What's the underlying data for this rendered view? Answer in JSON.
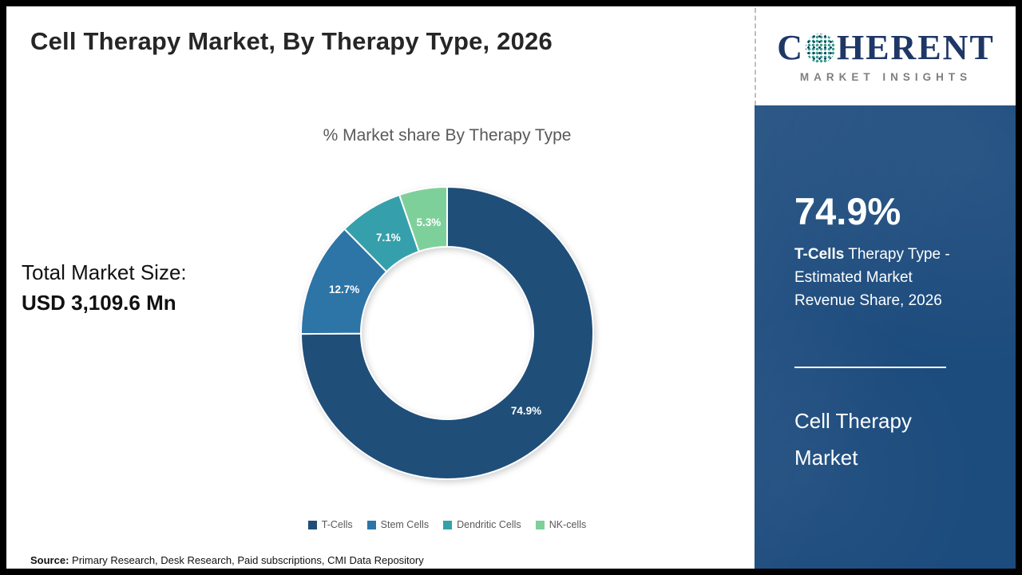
{
  "page_title": "Cell Therapy Market, By Therapy Type, 2026",
  "logo": {
    "name": "Coherent Market Insights",
    "word_prefix": "C",
    "word_suffix": "HERENT",
    "tagline": "MARKET INSIGHTS"
  },
  "left_panel": {
    "total_label": "Total Market Size:",
    "total_value": "USD 3,109.6 Mn"
  },
  "chart_data": {
    "type": "pie",
    "variant": "donut",
    "title": "% Market share By Therapy Type",
    "categories": [
      "T-Cells",
      "Stem Cells",
      "Dendritic Cells",
      "NK-cells"
    ],
    "values": [
      74.9,
      12.7,
      7.1,
      5.3
    ],
    "labels": [
      "74.9%",
      "12.7%",
      "7.1%",
      "5.3%"
    ],
    "colors": [
      "#1f4e79",
      "#2d74a7",
      "#35a0ab",
      "#7ed09b"
    ],
    "start_angle_deg": -90,
    "direction": "clockwise",
    "legend_position": "bottom"
  },
  "sidebar": {
    "background": "#1c4b7d",
    "highlight_value": "74.9%",
    "highlight_term": "T-Cells",
    "highlight_rest": " Therapy Type - Estimated Market Revenue Share, 2026",
    "panel_title": "Cell Therapy Market"
  },
  "footer": {
    "source_label": "Source:",
    "source_text": " Primary Research, Desk Research, Paid subscriptions, CMI Data Repository"
  }
}
